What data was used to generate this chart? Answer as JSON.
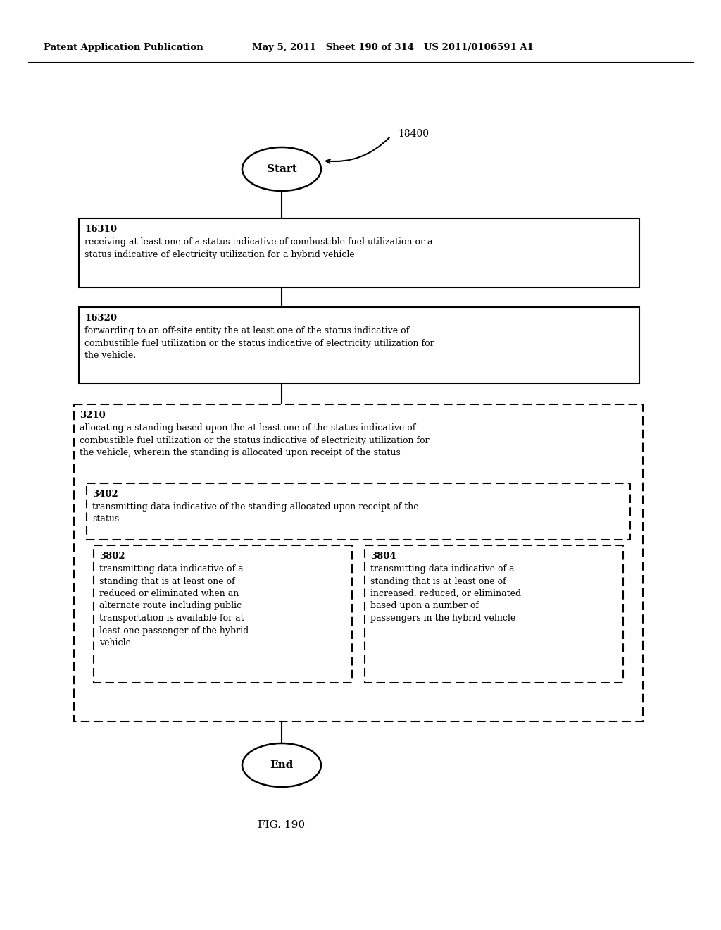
{
  "header_left": "Patent Application Publication",
  "header_mid": "May 5, 2011   Sheet 190 of 314   US 2011/0106591 A1",
  "fig_label": "FIG. 190",
  "label_18400": "18400",
  "start_label": "Start",
  "end_label": "End",
  "box1_id": "16310",
  "box1_text": "receiving at least one of a status indicative of combustible fuel utilization or a\nstatus indicative of electricity utilization for a hybrid vehicle",
  "box2_id": "16320",
  "box2_text": "forwarding to an off-site entity the at least one of the status indicative of\ncombustible fuel utilization or the status indicative of electricity utilization for\nthe vehicle.",
  "dbox1_id": "3210",
  "dbox1_text": "allocating a standing based upon the at least one of the status indicative of\ncombustible fuel utilization or the status indicative of electricity utilization for\nthe vehicle, wherein the standing is allocated upon receipt of the status",
  "dbox2_id": "3402",
  "dbox2_text": "transmitting data indicative of the standing allocated upon receipt of the\nstatus",
  "dbox3_id": "3802",
  "dbox3_text": "transmitting data indicative of a\nstanding that is at least one of\nreduced or eliminated when an\nalternate route including public\ntransportation is available for at\nleast one passenger of the hybrid\nvehicle",
  "dbox4_id": "3804",
  "dbox4_text": "transmitting data indicative of a\nstanding that is at least one of\nincreased, reduced, or eliminated\nbased upon a number of\npassengers in the hybrid vehicle",
  "bg_color": "#ffffff",
  "text_color": "#000000"
}
